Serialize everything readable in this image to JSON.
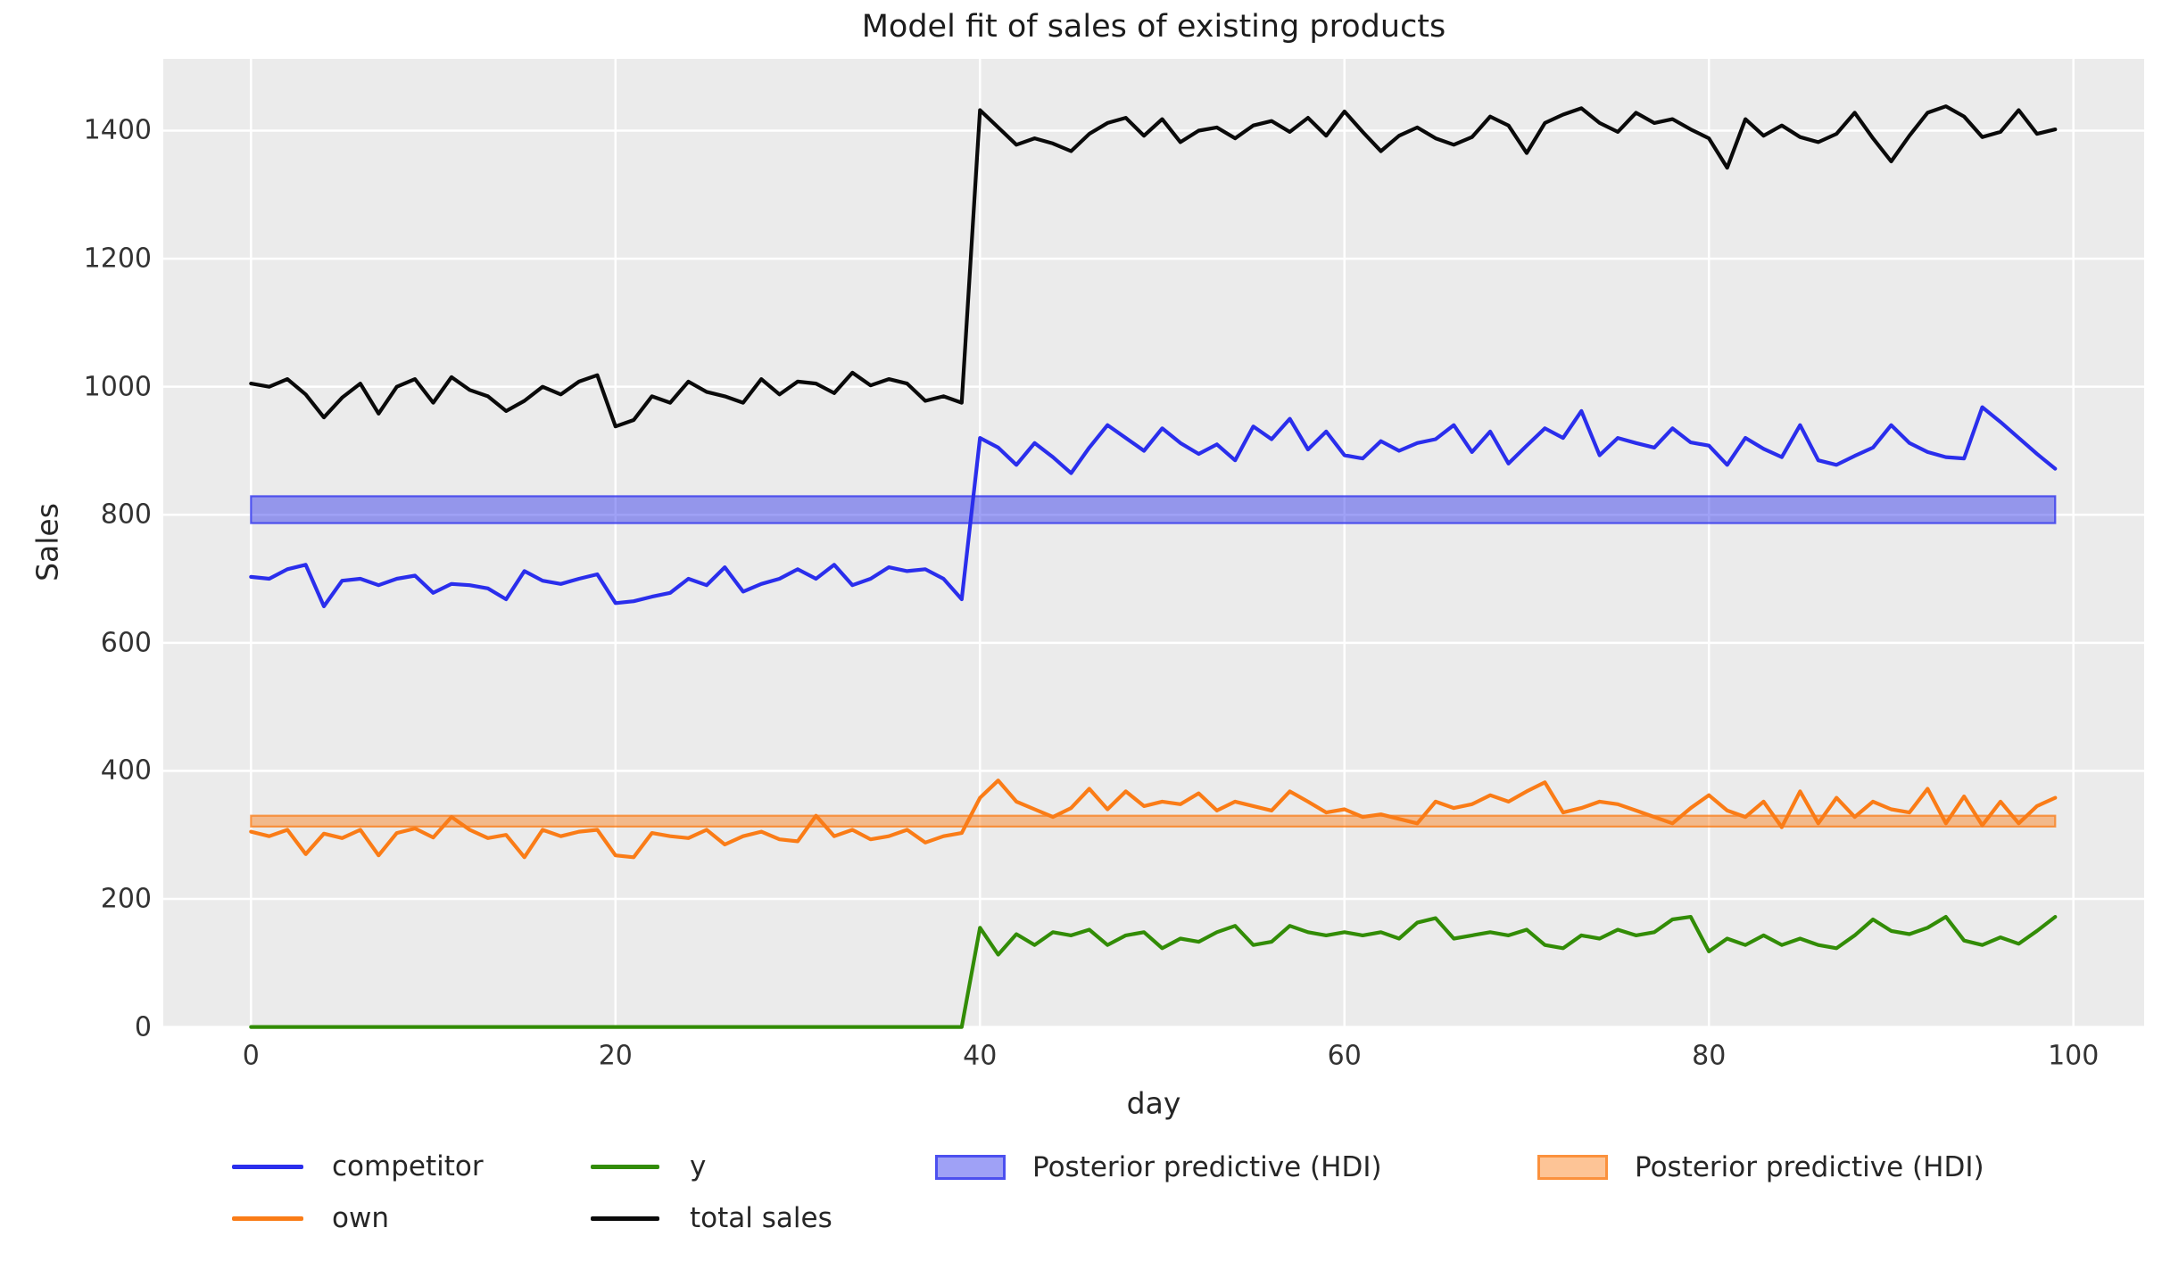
{
  "chart_data": {
    "type": "line",
    "title": "Model fit of sales of existing products",
    "xlabel": "day",
    "ylabel": "Sales",
    "xlim": [
      -4.95,
      103.95
    ],
    "ylim": [
      0,
      1510
    ],
    "grid": true,
    "plot_bg_color": "#ebebeb",
    "grid_color": "#ffffff",
    "xtick_values": [
      0,
      20,
      40,
      60,
      80,
      100
    ],
    "xtick_labels": [
      "0",
      "20",
      "40",
      "60",
      "80",
      "100"
    ],
    "ytick_values": [
      0,
      200,
      400,
      600,
      800,
      1000,
      1200,
      1400
    ],
    "ytick_labels": [
      "0",
      "200",
      "400",
      "600",
      "800",
      "1000",
      "1200",
      "1400"
    ],
    "x_is_index": true,
    "x_range": [
      0,
      99
    ],
    "series": [
      {
        "name": "competitor",
        "color": "#2a2eec",
        "values": [
          703,
          700,
          715,
          722,
          657,
          697,
          700,
          690,
          700,
          705,
          678,
          692,
          690,
          685,
          668,
          712,
          697,
          692,
          700,
          707,
          662,
          665,
          672,
          678,
          700,
          690,
          718,
          680,
          692,
          700,
          715,
          700,
          722,
          690,
          700,
          718,
          712,
          715,
          700,
          668,
          920,
          905,
          878,
          912,
          890,
          865,
          905,
          940,
          920,
          900,
          935,
          912,
          895,
          910,
          885,
          938,
          918,
          950,
          902,
          930,
          893,
          888,
          915,
          900,
          912,
          918,
          940,
          898,
          930,
          880,
          908,
          935,
          920,
          962,
          893,
          920,
          912,
          905,
          935,
          913,
          908,
          878,
          920,
          903,
          890,
          940,
          885,
          878,
          892,
          905,
          940,
          912,
          898,
          890,
          888,
          968,
          945,
          920,
          895,
          872
        ]
      },
      {
        "name": "own",
        "color": "#fa7c17",
        "values": [
          305,
          298,
          308,
          270,
          302,
          295,
          308,
          268,
          303,
          310,
          296,
          328,
          308,
          295,
          300,
          265,
          308,
          298,
          305,
          308,
          268,
          265,
          303,
          298,
          295,
          308,
          285,
          298,
          305,
          293,
          290,
          330,
          298,
          308,
          293,
          298,
          308,
          288,
          298,
          303,
          358,
          385,
          352,
          340,
          328,
          342,
          372,
          340,
          368,
          345,
          352,
          348,
          365,
          338,
          352,
          345,
          338,
          368,
          352,
          335,
          340,
          328,
          332,
          325,
          318,
          352,
          342,
          348,
          362,
          352,
          368,
          382,
          335,
          342,
          352,
          348,
          338,
          328,
          318,
          342,
          362,
          338,
          328,
          352,
          312,
          368,
          318,
          358,
          328,
          352,
          340,
          335,
          372,
          318,
          360,
          315,
          352,
          318,
          345,
          358
        ]
      },
      {
        "name": "y",
        "color": "#328c06",
        "values": [
          0,
          0,
          0,
          0,
          0,
          0,
          0,
          0,
          0,
          0,
          0,
          0,
          0,
          0,
          0,
          0,
          0,
          0,
          0,
          0,
          0,
          0,
          0,
          0,
          0,
          0,
          0,
          0,
          0,
          0,
          0,
          0,
          0,
          0,
          0,
          0,
          0,
          0,
          0,
          0,
          155,
          113,
          145,
          128,
          148,
          143,
          152,
          128,
          143,
          148,
          123,
          138,
          133,
          148,
          158,
          128,
          133,
          158,
          148,
          143,
          148,
          143,
          148,
          138,
          163,
          170,
          138,
          143,
          148,
          143,
          152,
          128,
          123,
          143,
          138,
          152,
          143,
          148,
          168,
          172,
          118,
          138,
          128,
          143,
          128,
          138,
          128,
          123,
          143,
          168,
          150,
          145,
          155,
          172,
          135,
          128,
          140,
          130,
          150,
          172
        ]
      },
      {
        "name": "total sales",
        "color": "#0a0a0a",
        "values": [
          1005,
          1000,
          1012,
          988,
          952,
          983,
          1005,
          958,
          1000,
          1012,
          975,
          1015,
          995,
          985,
          962,
          978,
          1000,
          988,
          1008,
          1018,
          938,
          948,
          985,
          975,
          1008,
          992,
          985,
          975,
          1012,
          988,
          1008,
          1005,
          990,
          1022,
          1002,
          1012,
          1005,
          978,
          985,
          975,
          1432,
          1405,
          1378,
          1388,
          1380,
          1368,
          1395,
          1412,
          1420,
          1392,
          1418,
          1382,
          1400,
          1405,
          1388,
          1408,
          1415,
          1398,
          1420,
          1392,
          1430,
          1398,
          1368,
          1392,
          1405,
          1388,
          1378,
          1390,
          1422,
          1408,
          1365,
          1412,
          1425,
          1435,
          1412,
          1398,
          1428,
          1412,
          1418,
          1402,
          1388,
          1342,
          1418,
          1392,
          1408,
          1390,
          1382,
          1395,
          1428,
          1388,
          1352,
          1392,
          1428,
          1438,
          1422,
          1390,
          1398,
          1432,
          1395,
          1402
        ]
      }
    ],
    "hdi_bands": [
      {
        "label": "Posterior predictive (HDI)",
        "applies_to": "competitor",
        "color": "#2a2eec",
        "day_start": 0,
        "day_end": 99,
        "lo": 787,
        "hi": 829,
        "fill_opacity": 0.45
      },
      {
        "label": "Posterior predictive (HDI)",
        "applies_to": "own",
        "color": "#fa7c17",
        "day_start": 0,
        "day_end": 99,
        "lo": 313,
        "hi": 330,
        "fill_opacity": 0.45
      }
    ]
  },
  "legend": {
    "items": [
      {
        "label": "competitor",
        "type": "line",
        "color": "#2a2eec"
      },
      {
        "label": "own",
        "type": "line",
        "color": "#fa7c17"
      },
      {
        "label": "y",
        "type": "line",
        "color": "#328c06"
      },
      {
        "label": "total sales",
        "type": "line",
        "color": "#0a0a0a"
      },
      {
        "label": "Posterior predictive (HDI)",
        "type": "patch",
        "color": "#2a2eec"
      },
      {
        "label": "Posterior predictive (HDI)",
        "type": "patch",
        "color": "#fa7c17"
      }
    ]
  }
}
